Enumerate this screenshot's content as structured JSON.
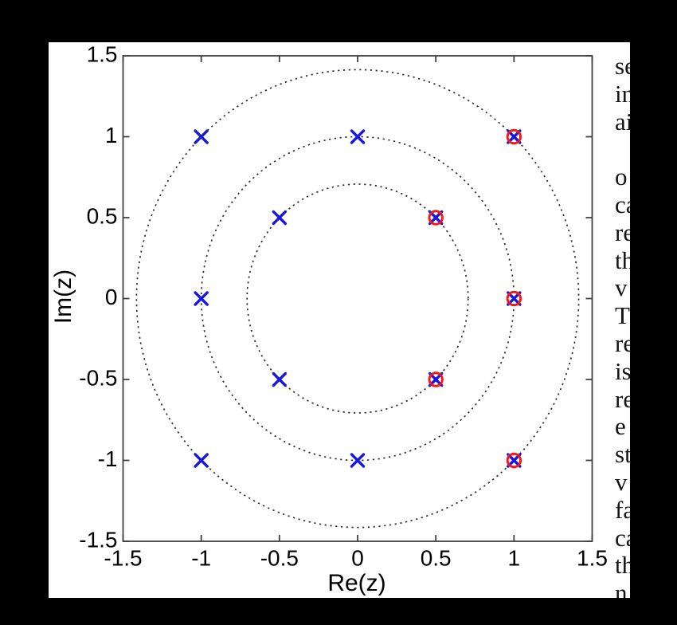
{
  "window": {
    "background_color": "#000000",
    "page_background_color": "#ffffff"
  },
  "chart_data": {
    "type": "scatter",
    "title": "",
    "xlabel": "Re(z)",
    "ylabel": "Im(z)",
    "xlim": [
      -1.5,
      1.5
    ],
    "ylim": [
      -1.5,
      1.5
    ],
    "x_ticks": [
      "-1.5",
      "-1",
      "-0.5",
      "0",
      "0.5",
      "1",
      "1.5"
    ],
    "y_ticks": [
      "-1.5",
      "-1",
      "-0.5",
      "0",
      "0.5",
      "1",
      "1.5"
    ],
    "grid": false,
    "axis_color": "#404040",
    "tick_label_color": "#000000",
    "reference_circles": {
      "line_style": "dotted",
      "color": "#2b2b2b",
      "radii": [
        0.7071,
        1.0,
        1.4142
      ]
    },
    "series": [
      {
        "name": "x-markers",
        "marker": "x",
        "color": "#1717e0",
        "points": [
          [
            -1,
            1
          ],
          [
            0,
            1
          ],
          [
            1,
            1
          ],
          [
            -0.5,
            0.5
          ],
          [
            0.5,
            0.5
          ],
          [
            -1,
            0
          ],
          [
            1,
            0
          ],
          [
            -0.5,
            -0.5
          ],
          [
            0.5,
            -0.5
          ],
          [
            -1,
            -1
          ],
          [
            0,
            -1
          ],
          [
            1,
            -1
          ]
        ]
      },
      {
        "name": "o-markers",
        "marker": "o",
        "color": "#ed1c1c",
        "points": [
          [
            1,
            1
          ],
          [
            0.5,
            0.5
          ],
          [
            1,
            0
          ],
          [
            0.5,
            -0.5
          ],
          [
            1,
            -1
          ]
        ]
      }
    ]
  },
  "right_text": {
    "lines": [
      "se",
      "in",
      "ai",
      "",
      "o",
      "ca",
      "re",
      "th",
      "v",
      "T",
      "re",
      "is",
      "re",
      "e",
      "st",
      "v",
      "fa",
      "ca",
      "th",
      "n"
    ]
  }
}
